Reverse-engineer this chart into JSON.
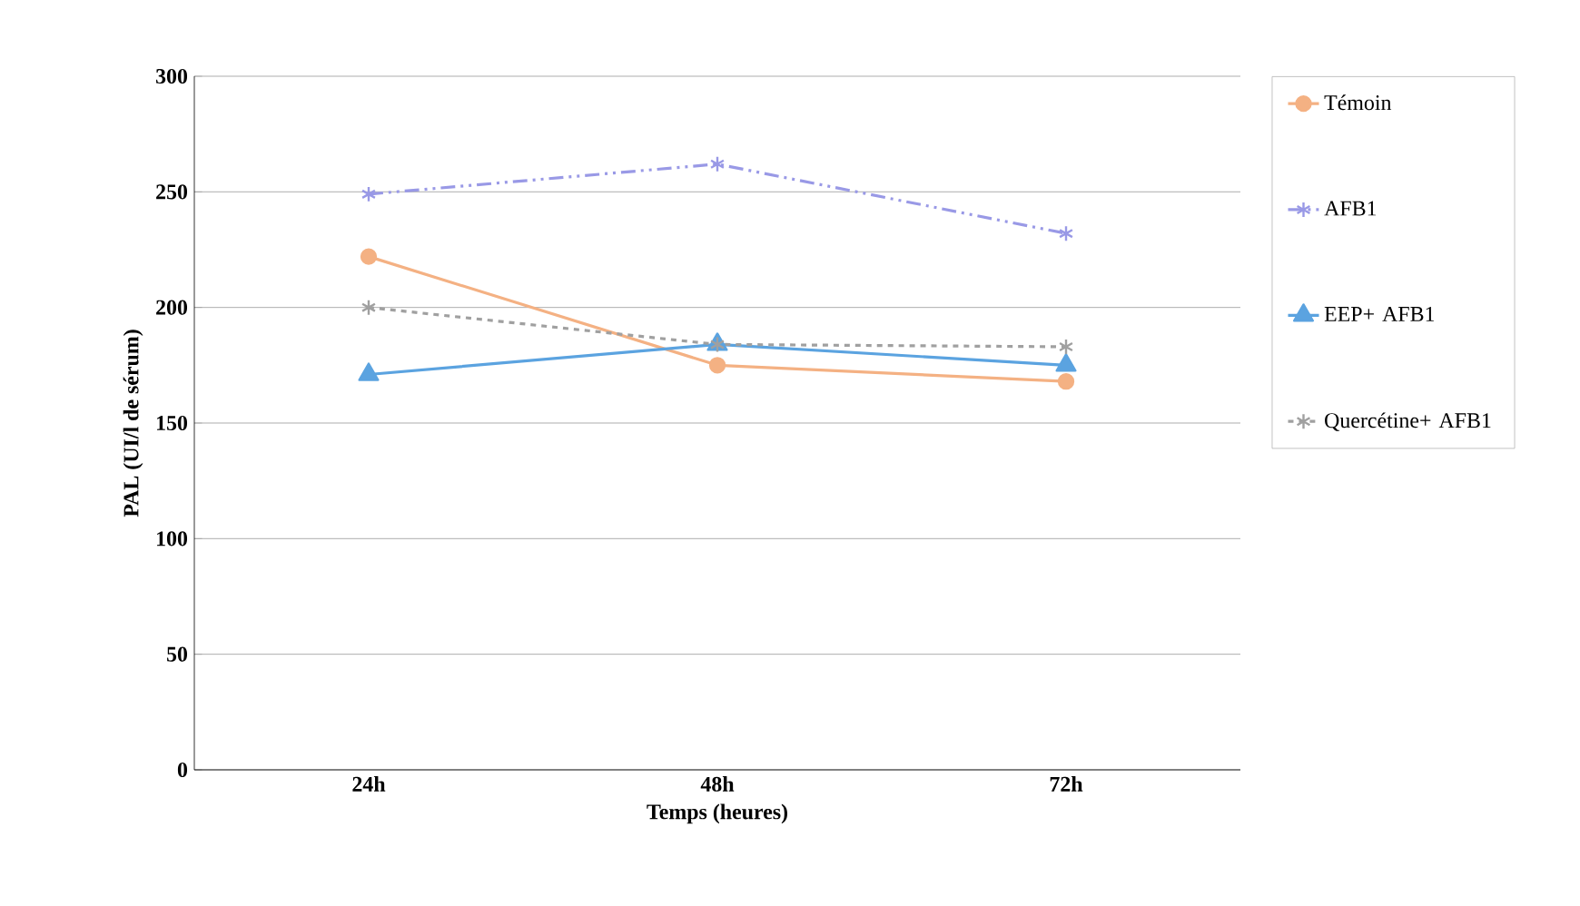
{
  "chart_data": {
    "type": "line",
    "xlabel": "Temps (heures)",
    "ylabel": "PAL (UI/l de sérum)",
    "categories": [
      "24h",
      "48h",
      "72h"
    ],
    "ylim": [
      0,
      300
    ],
    "yticks": [
      0,
      50,
      100,
      150,
      200,
      250,
      300
    ],
    "grid": "y",
    "legend": "right",
    "series": [
      {
        "name": "Témoin",
        "color": "#f4b183",
        "marker": "circle",
        "line_style": "solid",
        "values": [
          222,
          175,
          168
        ]
      },
      {
        "name": "AFB1",
        "color": "#9999e6",
        "marker": "cross",
        "line_style": "dashdot",
        "values": [
          249,
          262,
          232
        ]
      },
      {
        "name": "EEP+ AFB1",
        "color": "#5ba3e0",
        "marker": "triangle",
        "line_style": "solid",
        "values": [
          171,
          184,
          175
        ]
      },
      {
        "name": "Quercétine+ AFB1",
        "color": "#a0a0a0",
        "marker": "cross",
        "line_style": "dashed",
        "values": [
          200,
          184,
          183
        ]
      }
    ]
  }
}
